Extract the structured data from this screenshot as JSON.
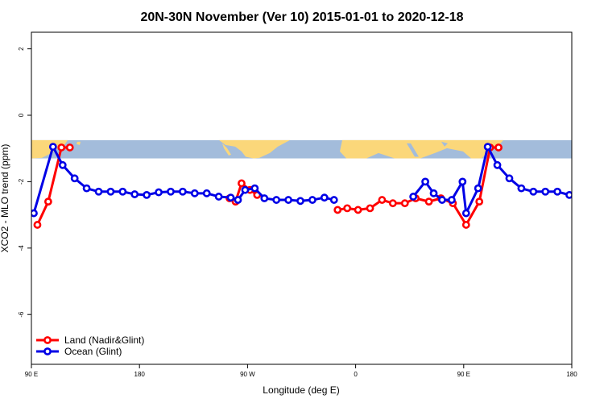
{
  "chart_data": {
    "type": "line",
    "title": "20N-30N November (Ver 10)   2015-01-01 to 2020-12-18",
    "xlabel": "Longitude (deg E)",
    "ylabel": "XCO2 - MLO trend (ppm)",
    "xlim": [
      90,
      540
    ],
    "ylim": [
      -7.5,
      2.5
    ],
    "xticks": [
      {
        "value": 90,
        "label": "90 E"
      },
      {
        "value": 180,
        "label": "180"
      },
      {
        "value": 270,
        "label": "90 W"
      },
      {
        "value": 360,
        "label": "0"
      },
      {
        "value": 450,
        "label": "90 E"
      },
      {
        "value": 540,
        "label": "180"
      }
    ],
    "yticks": [
      {
        "value": 2,
        "label": "2"
      },
      {
        "value": 0,
        "label": "0"
      },
      {
        "value": -2,
        "label": "-2"
      },
      {
        "value": -4,
        "label": "-4"
      },
      {
        "value": -6,
        "label": "-6"
      }
    ],
    "map_band": {
      "ymin": -1.3,
      "ymax": -0.75,
      "ocean_color": "#A3BCDB",
      "land_color": "#FBD77A"
    },
    "legend_position": "bottom-left",
    "grid": false,
    "series": [
      {
        "name": "Land (Nadir&Glint)",
        "color": "#FF0000",
        "segments": [
          [
            [
              95,
              -3.3
            ],
            [
              104,
              -2.6
            ],
            [
              115,
              -0.97
            ],
            [
              122,
              -0.97
            ]
          ],
          [
            [
              255,
              -2.5
            ],
            [
              260,
              -2.6
            ],
            [
              265,
              -2.05
            ],
            [
              272,
              -2.25
            ],
            [
              278,
              -2.4
            ]
          ],
          [
            [
              345,
              -2.85
            ],
            [
              353,
              -2.8
            ],
            [
              362,
              -2.85
            ],
            [
              372,
              -2.8
            ],
            [
              382,
              -2.55
            ],
            [
              391,
              -2.65
            ],
            [
              401,
              -2.65
            ],
            [
              410,
              -2.5
            ],
            [
              421,
              -2.6
            ],
            [
              431,
              -2.5
            ],
            [
              441,
              -2.65
            ],
            [
              452,
              -3.3
            ],
            [
              463,
              -2.6
            ],
            [
              472,
              -0.97
            ],
            [
              479,
              -0.97
            ]
          ]
        ]
      },
      {
        "name": "Ocean (Glint)",
        "color": "#0000E6",
        "segments": [
          [
            [
              92,
              -2.95
            ],
            [
              108,
              -0.95
            ],
            [
              116,
              -1.5
            ],
            [
              126,
              -1.9
            ],
            [
              136,
              -2.2
            ],
            [
              146,
              -2.3
            ],
            [
              156,
              -2.3
            ],
            [
              166,
              -2.3
            ],
            [
              176,
              -2.38
            ],
            [
              186,
              -2.4
            ],
            [
              196,
              -2.32
            ],
            [
              206,
              -2.3
            ],
            [
              216,
              -2.3
            ],
            [
              226,
              -2.35
            ],
            [
              236,
              -2.35
            ],
            [
              246,
              -2.45
            ],
            [
              256,
              -2.48
            ],
            [
              262,
              -2.55
            ],
            [
              268,
              -2.25
            ],
            [
              276,
              -2.2
            ],
            [
              284,
              -2.5
            ],
            [
              294,
              -2.55
            ],
            [
              304,
              -2.55
            ],
            [
              314,
              -2.58
            ],
            [
              324,
              -2.55
            ],
            [
              334,
              -2.48
            ],
            [
              342,
              -2.55
            ]
          ],
          [
            [
              408,
              -2.45
            ],
            [
              418,
              -2.0
            ],
            [
              425,
              -2.35
            ],
            [
              432,
              -2.55
            ],
            [
              440,
              -2.55
            ],
            [
              449,
              -2.0
            ],
            [
              452,
              -2.95
            ],
            [
              462,
              -2.2
            ],
            [
              470,
              -0.95
            ],
            [
              478,
              -1.5
            ],
            [
              488,
              -1.9
            ],
            [
              498,
              -2.2
            ],
            [
              508,
              -2.3
            ],
            [
              518,
              -2.3
            ],
            [
              528,
              -2.3
            ],
            [
              538,
              -2.4
            ]
          ]
        ]
      }
    ]
  }
}
